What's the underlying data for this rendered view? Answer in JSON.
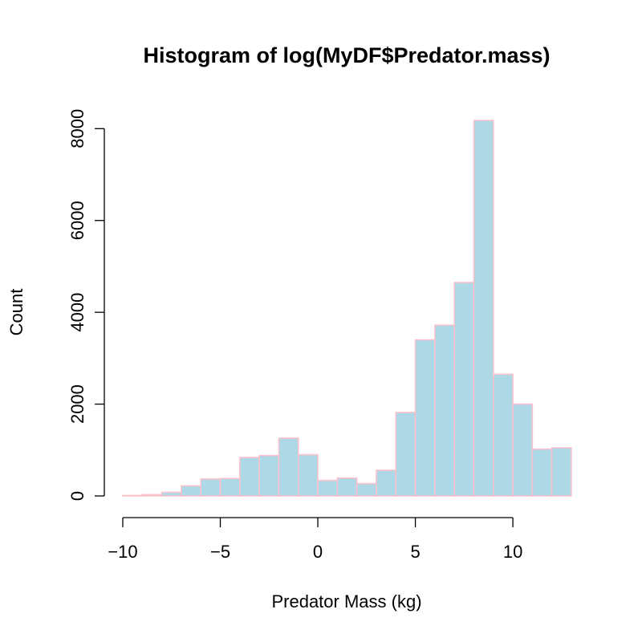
{
  "chart_data": {
    "type": "bar",
    "title": "Histogram of log(MyDF$Predator.mass)",
    "xlabel": "Predator Mass (kg)",
    "ylabel": "Count",
    "bins": [
      {
        "x0": -10,
        "x1": -9,
        "count": 10
      },
      {
        "x0": -9,
        "x1": -8,
        "count": 30
      },
      {
        "x0": -8,
        "x1": -7,
        "count": 80
      },
      {
        "x0": -7,
        "x1": -6,
        "count": 220
      },
      {
        "x0": -6,
        "x1": -5,
        "count": 370
      },
      {
        "x0": -5,
        "x1": -4,
        "count": 380
      },
      {
        "x0": -4,
        "x1": -3,
        "count": 840
      },
      {
        "x0": -3,
        "x1": -2,
        "count": 880
      },
      {
        "x0": -2,
        "x1": -1,
        "count": 1260
      },
      {
        "x0": -1,
        "x1": 0,
        "count": 900
      },
      {
        "x0": 0,
        "x1": 1,
        "count": 340
      },
      {
        "x0": 1,
        "x1": 2,
        "count": 390
      },
      {
        "x0": 2,
        "x1": 3,
        "count": 270
      },
      {
        "x0": 3,
        "x1": 4,
        "count": 560
      },
      {
        "x0": 4,
        "x1": 5,
        "count": 1820
      },
      {
        "x0": 5,
        "x1": 6,
        "count": 3400
      },
      {
        "x0": 6,
        "x1": 7,
        "count": 3720
      },
      {
        "x0": 7,
        "x1": 8,
        "count": 4650
      },
      {
        "x0": 8,
        "x1": 9,
        "count": 8180
      },
      {
        "x0": 9,
        "x1": 10,
        "count": 2650
      },
      {
        "x0": 10,
        "x1": 11,
        "count": 2000
      },
      {
        "x0": 11,
        "x1": 12,
        "count": 1020
      },
      {
        "x0": 12,
        "x1": 13,
        "count": 1050
      }
    ],
    "xlim": [
      -10,
      13
    ],
    "ylim": [
      0,
      8180
    ],
    "xticks": [
      -10,
      -5,
      0,
      5,
      10
    ],
    "xtick_labels": [
      "−10",
      "−5",
      "0",
      "5",
      "10"
    ],
    "yticks": [
      0,
      2000,
      4000,
      6000,
      8000
    ],
    "ytick_labels": [
      "0",
      "2000",
      "4000",
      "6000",
      "8000"
    ],
    "bar_fill": "#add8e6",
    "bar_border": "#ffc0cb",
    "grid": false,
    "legend": "none"
  }
}
